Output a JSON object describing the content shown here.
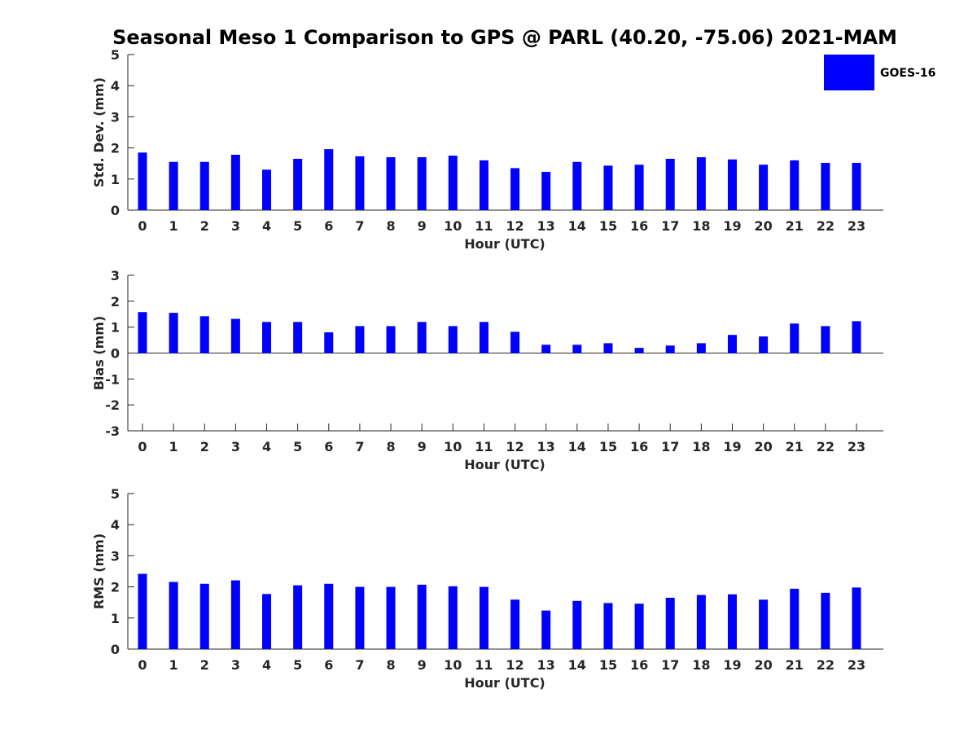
{
  "title": "Seasonal Meso 1 Comparison to GPS @ PARL (40.20, -75.06) 2021-MAM",
  "legend": {
    "label": "GOES-16",
    "color": "#0000ff",
    "placement": "top-right"
  },
  "chart_data": [
    {
      "type": "bar",
      "series": [
        {
          "name": "GOES-16",
          "values": [
            1.85,
            1.55,
            1.55,
            1.78,
            1.3,
            1.65,
            1.96,
            1.73,
            1.7,
            1.7,
            1.75,
            1.6,
            1.35,
            1.23,
            1.55,
            1.43,
            1.46,
            1.65,
            1.7,
            1.63,
            1.46,
            1.6,
            1.52,
            1.52
          ]
        }
      ],
      "categories": [
        "0",
        "1",
        "2",
        "3",
        "4",
        "5",
        "6",
        "7",
        "8",
        "9",
        "10",
        "11",
        "12",
        "13",
        "14",
        "15",
        "16",
        "17",
        "18",
        "19",
        "20",
        "21",
        "22",
        "23"
      ],
      "xlabel": "Hour (UTC)",
      "ylabel": "Std. Dev. (mm)",
      "ylim": [
        0,
        5
      ],
      "yticks": [
        "0",
        "1",
        "2",
        "3",
        "4",
        "5"
      ],
      "grid": false,
      "color": "#0000ff"
    },
    {
      "type": "bar",
      "series": [
        {
          "name": "GOES-16",
          "values": [
            1.58,
            1.55,
            1.42,
            1.32,
            1.2,
            1.2,
            0.8,
            1.04,
            1.04,
            1.2,
            1.04,
            1.2,
            0.82,
            0.32,
            0.32,
            0.38,
            0.2,
            0.29,
            0.38,
            0.7,
            0.64,
            1.14,
            1.04,
            1.23
          ]
        }
      ],
      "categories": [
        "0",
        "1",
        "2",
        "3",
        "4",
        "5",
        "6",
        "7",
        "8",
        "9",
        "10",
        "11",
        "12",
        "13",
        "14",
        "15",
        "16",
        "17",
        "18",
        "19",
        "20",
        "21",
        "22",
        "23"
      ],
      "xlabel": "Hour (UTC)",
      "ylabel": "Bias (mm)",
      "ylim": [
        -3,
        3
      ],
      "yticks": [
        "-3",
        "-2",
        "-1",
        "0",
        "1",
        "2",
        "3"
      ],
      "grid": false,
      "color": "#0000ff"
    },
    {
      "type": "bar",
      "series": [
        {
          "name": "GOES-16",
          "values": [
            2.42,
            2.16,
            2.1,
            2.21,
            1.77,
            2.05,
            2.1,
            2.0,
            2.0,
            2.07,
            2.02,
            2.0,
            1.59,
            1.24,
            1.55,
            1.48,
            1.46,
            1.65,
            1.74,
            1.76,
            1.59,
            1.94,
            1.81,
            1.98
          ]
        }
      ],
      "categories": [
        "0",
        "1",
        "2",
        "3",
        "4",
        "5",
        "6",
        "7",
        "8",
        "9",
        "10",
        "11",
        "12",
        "13",
        "14",
        "15",
        "16",
        "17",
        "18",
        "19",
        "20",
        "21",
        "22",
        "23"
      ],
      "xlabel": "Hour (UTC)",
      "ylabel": "RMS (mm)",
      "ylim": [
        0,
        5
      ],
      "yticks": [
        "0",
        "1",
        "2",
        "3",
        "4",
        "5"
      ],
      "grid": false,
      "color": "#0000ff"
    }
  ]
}
